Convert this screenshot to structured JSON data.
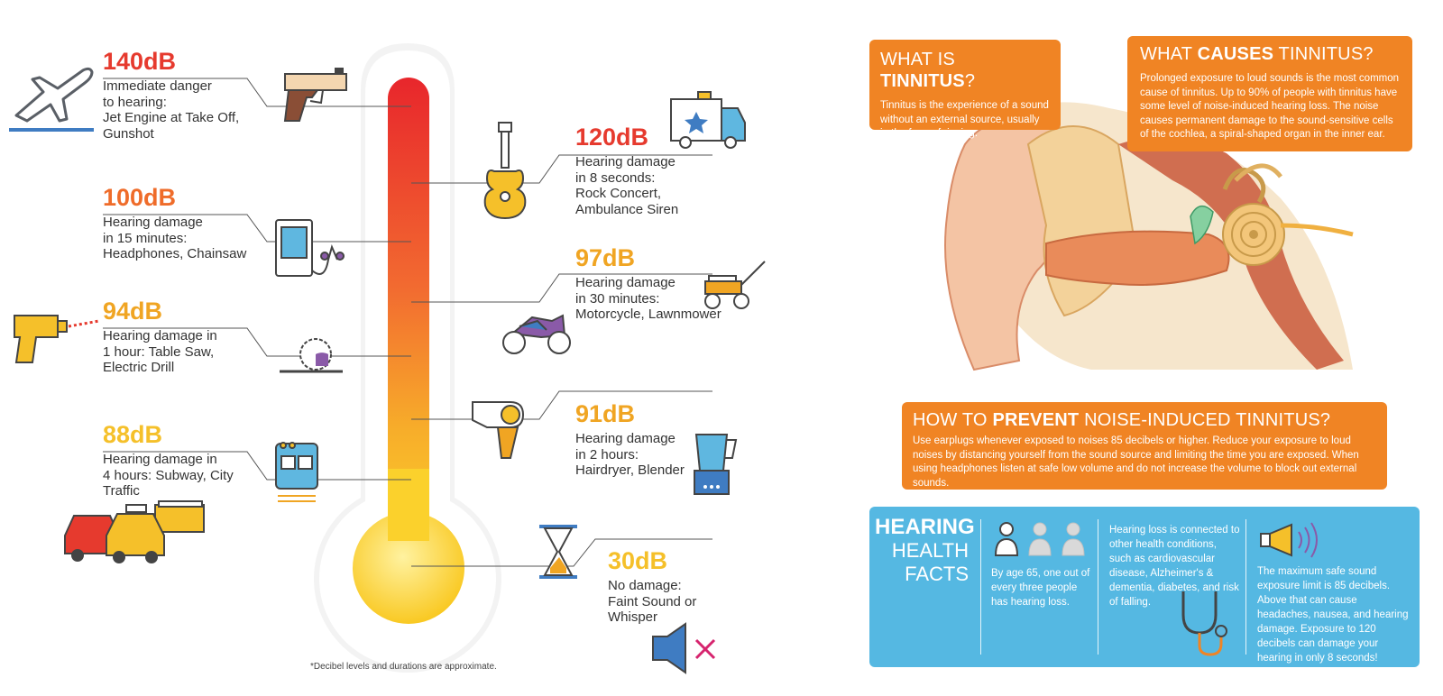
{
  "levels": [
    {
      "db": "140dB",
      "text": "Immediate danger\nto hearing:\nJet Engine at Take Off,\nGunshot",
      "color": "#e63a2e"
    },
    {
      "db": "120dB",
      "text": "Hearing damage\nin 8 seconds:\nRock Concert,\nAmbulance Siren",
      "color": "#e63a2e"
    },
    {
      "db": "100dB",
      "text": "Hearing damage\nin 15 minutes:\nHeadphones, Chainsaw",
      "color": "#ef6c2a"
    },
    {
      "db": "97dB",
      "text": "Hearing damage\nin 30 minutes:\nMotorcycle, Lawnmower",
      "color": "#f0a523"
    },
    {
      "db": "94dB",
      "text": "Hearing damage in\n1 hour: Table Saw,\nElectric Drill",
      "color": "#f0a523"
    },
    {
      "db": "91dB",
      "text": "Hearing damage\nin 2 hours:\nHairdryer, Blender",
      "color": "#f0a523"
    },
    {
      "db": "88dB",
      "text": "Hearing damage in\n4 hours: Subway, City\nTraffic",
      "color": "#f5c02a"
    },
    {
      "db": "30dB",
      "text": "No damage:\nFaint Sound or\nWhisper",
      "color": "#f5c02a"
    }
  ],
  "footnote": "*Decibel levels and durations are approximate.",
  "icons": [
    "airplane-icon",
    "gun-icon",
    "ambulance-icon",
    "guitar-icon",
    "music-player-icon",
    "lawnmower-icon",
    "motorcycle-icon",
    "drill-icon",
    "saw-icon",
    "hairdryer-icon",
    "blender-icon",
    "train-icon",
    "cars-icon",
    "hourglass-icon",
    "mute-speaker-icon",
    "thermometer-icon",
    "ear-anatomy-icon",
    "people-icon",
    "stethoscope-icon",
    "megaphone-icon"
  ],
  "what_is": {
    "title_pre": "WHAT IS ",
    "title_bold": "TINNITUS",
    "title_post": "?",
    "text": "Tinnitus is the experience of a sound without an external source, usually in the form of ringing."
  },
  "what_causes": {
    "title_pre": "WHAT ",
    "title_bold": "CAUSES",
    "title_post": " TINNITUS?",
    "text": "Prolonged exposure to loud sounds is the most common cause of tinnitus. Up to 90% of people with tinnitus have some level of noise-induced hearing loss. The noise causes permanent damage to the sound-sensitive cells of the cochlea, a spiral-shaped organ in the inner ear."
  },
  "prevent": {
    "title_pre": "HOW TO ",
    "title_bold": "PREVENT",
    "title_post": "  NOISE-INDUCED TINNITUS?",
    "text": "Use earplugs whenever exposed to noises 85 decibels or higher. Reduce your exposure to loud noises by distancing yourself from the sound source and limiting the time you are exposed. When using headphones listen at safe low volume and do not increase the volume to block out external sounds."
  },
  "facts": {
    "title_line1": "HEARING",
    "title_line2": "HEALTH",
    "title_line3": "FACTS",
    "fact1": "By age 65, one out of every three people has hearing loss.",
    "fact2": "Hearing loss is connected to other health conditions, such as cardiovascular disease, Alzheimer's & dementia, diabetes, and risk of falling.",
    "fact3": "The maximum safe sound exposure limit is 85 decibels. Above that can cause headaches, nausea, and hearing damage. Exposure to 120 decibels can damage your hearing in only 8 seconds!"
  },
  "colors": {
    "red": "#e63a2e",
    "orange": "#f08424",
    "amber": "#f0a523",
    "yellow": "#f5c02a",
    "blue": "#55b8e2"
  }
}
